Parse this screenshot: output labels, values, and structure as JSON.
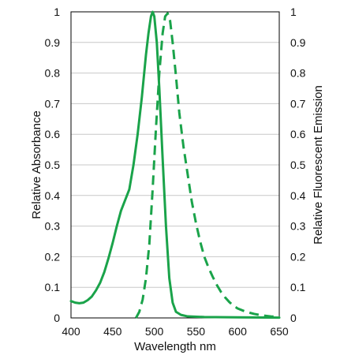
{
  "chart_data": {
    "type": "line",
    "xlabel": "Wavelength nm",
    "ylabel_left": "Relative Absorbance",
    "ylabel_right": "Relative Fluorescent Emission",
    "xlim": [
      400,
      650
    ],
    "ylim": [
      0,
      1
    ],
    "x_ticks": [
      "400",
      "450",
      "500",
      "550",
      "600",
      "650"
    ],
    "y_ticks": [
      "0",
      "0.1",
      "0.2",
      "0.3",
      "0.4",
      "0.5",
      "0.6",
      "0.7",
      "0.8",
      "0.9",
      "1"
    ],
    "grid": "horizontal",
    "series": [
      {
        "style": "solid",
        "color": "#1aa34a",
        "points": [
          [
            400,
            0.055
          ],
          [
            405,
            0.05
          ],
          [
            410,
            0.048
          ],
          [
            415,
            0.05
          ],
          [
            420,
            0.058
          ],
          [
            425,
            0.07
          ],
          [
            430,
            0.09
          ],
          [
            435,
            0.115
          ],
          [
            440,
            0.15
          ],
          [
            445,
            0.195
          ],
          [
            450,
            0.245
          ],
          [
            455,
            0.3
          ],
          [
            460,
            0.35
          ],
          [
            465,
            0.385
          ],
          [
            470,
            0.42
          ],
          [
            475,
            0.5
          ],
          [
            480,
            0.6
          ],
          [
            485,
            0.72
          ],
          [
            490,
            0.86
          ],
          [
            493,
            0.93
          ],
          [
            496,
            0.985
          ],
          [
            498,
            1.0
          ],
          [
            500,
            0.985
          ],
          [
            503,
            0.9
          ],
          [
            506,
            0.75
          ],
          [
            510,
            0.52
          ],
          [
            514,
            0.3
          ],
          [
            518,
            0.13
          ],
          [
            522,
            0.05
          ],
          [
            526,
            0.02
          ],
          [
            532,
            0.01
          ],
          [
            540,
            0.005
          ],
          [
            560,
            0.003
          ],
          [
            600,
            0.002
          ],
          [
            650,
            0.001
          ]
        ]
      },
      {
        "style": "dashed",
        "color": "#1aa34a",
        "points": [
          [
            478,
            0.0
          ],
          [
            482,
            0.02
          ],
          [
            486,
            0.06
          ],
          [
            490,
            0.13
          ],
          [
            494,
            0.24
          ],
          [
            498,
            0.42
          ],
          [
            502,
            0.62
          ],
          [
            506,
            0.8
          ],
          [
            510,
            0.93
          ],
          [
            513,
            0.985
          ],
          [
            516,
            0.995
          ],
          [
            519,
            0.97
          ],
          [
            522,
            0.9
          ],
          [
            526,
            0.79
          ],
          [
            530,
            0.67
          ],
          [
            535,
            0.56
          ],
          [
            540,
            0.47
          ],
          [
            545,
            0.38
          ],
          [
            550,
            0.31
          ],
          [
            555,
            0.25
          ],
          [
            560,
            0.2
          ],
          [
            565,
            0.165
          ],
          [
            570,
            0.135
          ],
          [
            575,
            0.108
          ],
          [
            580,
            0.085
          ],
          [
            585,
            0.067
          ],
          [
            590,
            0.052
          ],
          [
            595,
            0.04
          ],
          [
            600,
            0.031
          ],
          [
            610,
            0.02
          ],
          [
            620,
            0.013
          ],
          [
            630,
            0.008
          ],
          [
            640,
            0.005
          ],
          [
            650,
            0.003
          ]
        ]
      }
    ]
  }
}
